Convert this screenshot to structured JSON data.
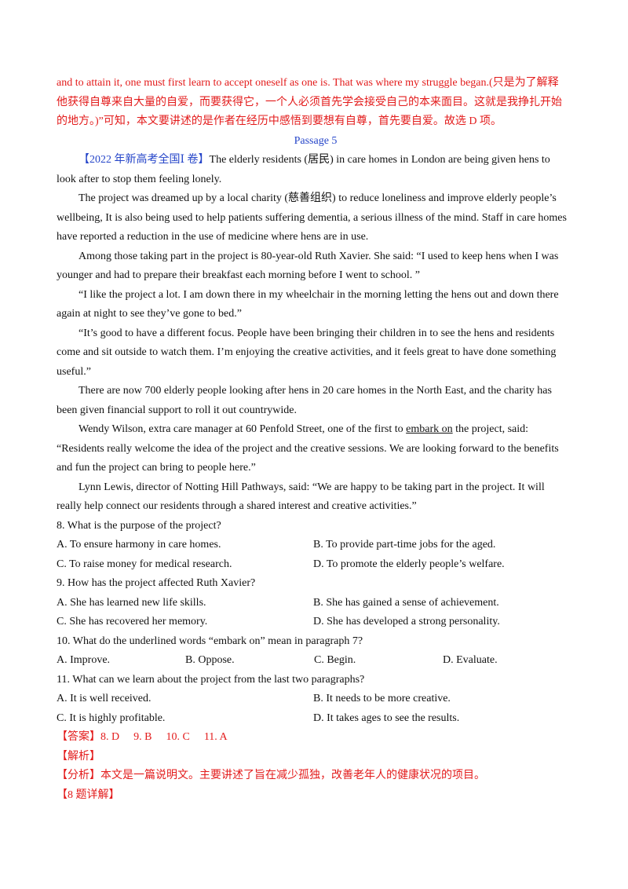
{
  "intro": {
    "line1": "and to attain it, one must first learn to accept oneself as one is. That was where my struggle began.(只是为了解释",
    "line2": "他获得自尊来自大量的自爱，而要获得它，一个人必须首先学会接受自己的本来面目。这就是我挣扎开始",
    "line3": "的地方。)”可知，本文要讲述的是作者在经历中感悟到要想有自尊，首先要自爱。故选 D 项。"
  },
  "passage": {
    "title": "Passage  5",
    "source": "【2022 年新高考全国Ⅰ 卷】",
    "p1_a": "The elderly residents (居民) in care homes in London are being given hens to",
    "p1_b": "look after to stop them feeling lonely.",
    "p2_a": "The project was dreamed up by a local charity (慈善组织) to reduce loneliness and improve elderly people’s",
    "p2_b": "wellbeing, It is also being used to help patients suffering dementia, a serious illness of the mind. Staff in care homes",
    "p2_c": "have reported a reduction in the use of medicine where hens are in use.",
    "p3_a": "Among those taking part in the project is 80-year-old Ruth Xavier. She said: “I used to keep hens when I was",
    "p3_b": "younger and had to prepare their breakfast each morning before I went to school. ”",
    "p4_a": "“I like the project a lot. I am down there in my wheelchair in the morning letting the hens out and down there",
    "p4_b": "again at night to see they’ve gone to bed.”",
    "p5_a": "“It’s good to have a different focus. People have been bringing their children in to see the hens and residents",
    "p5_b": "come and sit outside to watch them. I’m enjoying the creative activities, and it feels great to have done something",
    "p5_c": "useful.”",
    "p6_a": "There are now 700 elderly people looking after hens in 20 care homes in the North East, and the charity has",
    "p6_b": "been given financial support to roll it out countrywide.",
    "p7_a_pre": "Wendy Wilson, extra care manager at 60 Penfold Street, one of the first to ",
    "p7_a_u": "embark on",
    "p7_a_post": " the project, said:",
    "p7_b": "“Residents really welcome the idea of the project and the creative sessions. We are looking forward to the benefits",
    "p7_c": "and fun the project can bring to people here.”",
    "p8_a": "Lynn Lewis, director of Notting Hill Pathways, said: “We are happy to be taking part in the project. It will",
    "p8_b": "really help connect our residents through a shared interest and creative activities.”"
  },
  "questions": [
    {
      "stem": "8. What is the purpose of the project?",
      "options": [
        "A. To ensure harmony in care homes.",
        "B. To provide part-time jobs for the aged.",
        "C. To raise money for medical research.",
        "D. To promote the elderly people’s welfare."
      ]
    },
    {
      "stem": "9. How has the project affected Ruth Xavier?",
      "options": [
        "A. She has learned new life skills.",
        "B. She has gained a sense of achievement.",
        "C. She has recovered her memory.",
        "D. She has developed a strong personality."
      ]
    },
    {
      "stem": "10. What do the underlined words “embark on” mean in paragraph 7?",
      "options": [
        "A. Improve.",
        "B. Oppose.",
        "C. Begin.",
        "D. Evaluate."
      ]
    },
    {
      "stem": "11. What can we learn about the project from the last two paragraphs?",
      "options": [
        "A. It is well received.",
        "B. It needs to be more creative.",
        "C. It is highly profitable.",
        "D. It takes ages to see the results."
      ]
    }
  ],
  "answers": {
    "label": "【答案】",
    "a8": "8. D",
    "a9": "9. B",
    "a10": "10. C",
    "a11": "11. A"
  },
  "analysis": {
    "heading": "【解析】",
    "summary": "【分析】本文是一篇说明文。主要讲述了旨在减少孤独，改善老年人的健康状况的项目。",
    "detail8": "【8 题详解】"
  }
}
